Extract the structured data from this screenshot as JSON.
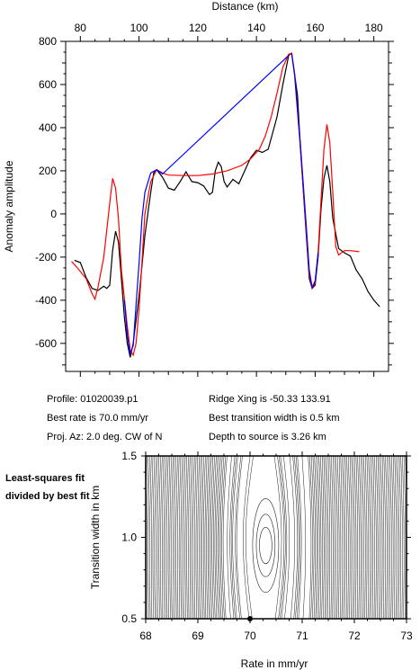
{
  "chart_data": [
    {
      "type": "line",
      "title": "",
      "xlabel": "Distance (km)",
      "ylabel": "Anomaly amplitude",
      "xlim": [
        75,
        185
      ],
      "ylim": [
        -730,
        800
      ],
      "x_axis_position": "top",
      "xticks": [
        80,
        100,
        120,
        140,
        160,
        180
      ],
      "yticks": [
        -600,
        -400,
        -200,
        0,
        200,
        400,
        600,
        800
      ],
      "grid": false,
      "legend": "none",
      "series": [
        {
          "color": "#000000",
          "points": [
            [
              78,
              -215
            ],
            [
              80,
              -225
            ],
            [
              82,
              -295
            ],
            [
              84,
              -345
            ],
            [
              86,
              -355
            ],
            [
              88,
              -335
            ],
            [
              89,
              -345
            ],
            [
              90,
              -330
            ],
            [
              91,
              -170
            ],
            [
              92,
              -80
            ],
            [
              93,
              -130
            ],
            [
              94,
              -300
            ],
            [
              95,
              -480
            ],
            [
              96,
              -600
            ],
            [
              97,
              -665
            ],
            [
              98,
              -600
            ],
            [
              100,
              -380
            ],
            [
              102,
              -100
            ],
            [
              104,
              100
            ],
            [
              105,
              190
            ],
            [
              106,
              205
            ],
            [
              108,
              170
            ],
            [
              110,
              120
            ],
            [
              112,
              110
            ],
            [
              114,
              150
            ],
            [
              116,
              195
            ],
            [
              118,
              150
            ],
            [
              120,
              145
            ],
            [
              122,
              130
            ],
            [
              124,
              90
            ],
            [
              125,
              100
            ],
            [
              126,
              200
            ],
            [
              127,
              240
            ],
            [
              128,
              220
            ],
            [
              129,
              150
            ],
            [
              130,
              125
            ],
            [
              132,
              160
            ],
            [
              134,
              140
            ],
            [
              136,
              200
            ],
            [
              138,
              260
            ],
            [
              140,
              295
            ],
            [
              142,
              285
            ],
            [
              144,
              300
            ],
            [
              145,
              350
            ],
            [
              147,
              450
            ],
            [
              149,
              600
            ],
            [
              151,
              735
            ],
            [
              152,
              745
            ],
            [
              154,
              550
            ],
            [
              155,
              300
            ],
            [
              157,
              -100
            ],
            [
              158,
              -300
            ],
            [
              159,
              -345
            ],
            [
              160,
              -330
            ],
            [
              161,
              -200
            ],
            [
              162,
              20
            ],
            [
              163,
              165
            ],
            [
              164,
              225
            ],
            [
              165,
              150
            ],
            [
              166,
              -20
            ],
            [
              168,
              -160
            ],
            [
              170,
              -180
            ],
            [
              172,
              -195
            ],
            [
              174,
              -260
            ],
            [
              176,
              -300
            ],
            [
              178,
              -360
            ],
            [
              180,
              -400
            ],
            [
              182,
              -430
            ]
          ]
        },
        {
          "color": "#ff0000",
          "points": [
            [
              77,
              -220
            ],
            [
              79,
              -250
            ],
            [
              82,
              -300
            ],
            [
              84,
              -370
            ],
            [
              85,
              -395
            ],
            [
              86,
              -340
            ],
            [
              88,
              -200
            ],
            [
              90,
              50
            ],
            [
              91,
              165
            ],
            [
              92,
              120
            ],
            [
              93,
              -20
            ],
            [
              94,
              -260
            ],
            [
              96,
              -520
            ],
            [
              97,
              -630
            ],
            [
              98,
              -655
            ],
            [
              99,
              -600
            ],
            [
              100,
              -440
            ],
            [
              101,
              -220
            ],
            [
              102,
              0
            ],
            [
              104,
              150
            ],
            [
              106,
              205
            ],
            [
              108,
              190
            ],
            [
              110,
              180
            ],
            [
              115,
              178
            ],
            [
              120,
              178
            ],
            [
              125,
              185
            ],
            [
              130,
              200
            ],
            [
              135,
              225
            ],
            [
              138,
              255
            ],
            [
              141,
              300
            ],
            [
              143,
              360
            ],
            [
              145,
              450
            ],
            [
              147,
              560
            ],
            [
              149,
              680
            ],
            [
              151,
              740
            ],
            [
              152,
              745
            ],
            [
              153,
              640
            ],
            [
              155,
              300
            ],
            [
              157,
              -80
            ],
            [
              158,
              -280
            ],
            [
              159,
              -345
            ],
            [
              160,
              -320
            ],
            [
              161,
              -180
            ],
            [
              162,
              60
            ],
            [
              163,
              300
            ],
            [
              164,
              415
            ],
            [
              165,
              330
            ],
            [
              166,
              100
            ],
            [
              167,
              -150
            ],
            [
              168,
              -190
            ],
            [
              170,
              -170
            ],
            [
              172,
              -170
            ],
            [
              175,
              -175
            ]
          ]
        },
        {
          "color": "#0000ff",
          "points": [
            [
              95,
              -400
            ],
            [
              96,
              -560
            ],
            [
              97,
              -650
            ],
            [
              98,
              -610
            ],
            [
              99,
              -420
            ],
            [
              100,
              -230
            ],
            [
              101,
              -20
            ],
            [
              102,
              100
            ],
            [
              104,
              190
            ],
            [
              106,
              205
            ],
            [
              108,
              185
            ],
            [
              151,
              735
            ],
            [
              152,
              745
            ],
            [
              153,
              650
            ],
            [
              155,
              320
            ],
            [
              157,
              -60
            ],
            [
              158,
              -260
            ],
            [
              159,
              -340
            ],
            [
              160,
              -310
            ],
            [
              161,
              -180
            ]
          ]
        }
      ]
    },
    {
      "type": "contour",
      "title": "",
      "xlabel": "Rate in mm/yr",
      "ylabel": "Transition width in km",
      "xlim": [
        68,
        73
      ],
      "ylim": [
        0.5,
        1.5
      ],
      "xticks": [
        68,
        69,
        70,
        71,
        72,
        73
      ],
      "yticks": [
        0.5,
        1.0,
        1.5
      ],
      "best_fit": {
        "rate": 70.0,
        "width": 0.5
      },
      "description": "Least-squares fit divided by best fit"
    }
  ],
  "info": {
    "profile": "Profile: 01020039.p1",
    "best_rate": "Best rate is 70.0 mm/yr",
    "proj_az": "Proj. Az: 2.0 deg. CW of N",
    "ridge_xing": "Ridge Xing is -50.33 133.91",
    "transition": "Best transition width is 0.5 km",
    "depth": "Depth to source is   3.26 km"
  },
  "side_label": "Least-squares fit divided by best fit"
}
